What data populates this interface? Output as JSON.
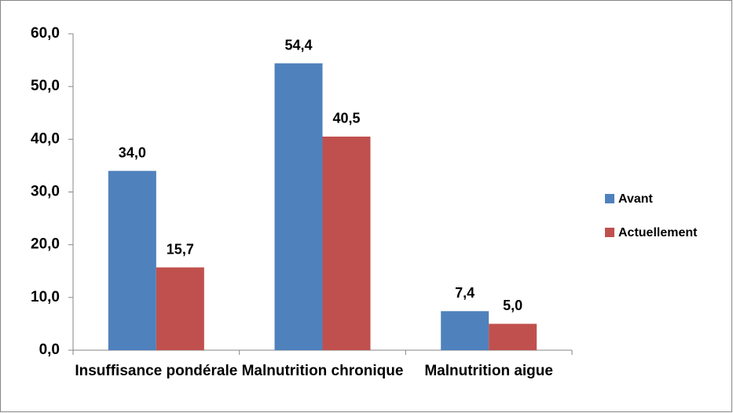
{
  "chart_data": {
    "type": "bar",
    "categories": [
      "Insuffisance pondérale",
      "Malnutrition chronique",
      "Malnutrition aigue"
    ],
    "series": [
      {
        "name": "Avant",
        "color": "#4f81bd",
        "values": [
          34.0,
          54.4,
          7.4
        ],
        "value_labels": [
          "34,0",
          "54,4",
          "7,4"
        ]
      },
      {
        "name": "Actuellement",
        "color": "#c0504d",
        "values": [
          15.7,
          40.5,
          5.0
        ],
        "value_labels": [
          "15,7",
          "40,5",
          "5,0"
        ]
      }
    ],
    "ylim": [
      0,
      60
    ],
    "yticks": [
      {
        "value": 0,
        "label": "0,0"
      },
      {
        "value": 10,
        "label": "10,0"
      },
      {
        "value": 20,
        "label": "20,0"
      },
      {
        "value": 30,
        "label": "30,0"
      },
      {
        "value": 40,
        "label": "40,0"
      },
      {
        "value": 50,
        "label": "50,0"
      },
      {
        "value": 60,
        "label": "60,0"
      }
    ],
    "legend": "right",
    "grid": false
  }
}
